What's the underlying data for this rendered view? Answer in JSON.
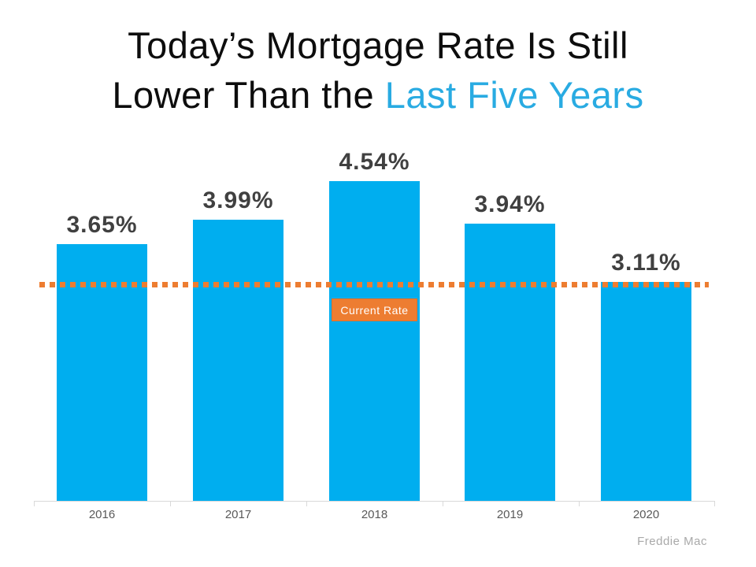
{
  "title": {
    "line1": "Today’s Mortgage Rate Is Still",
    "line2_prefix": "Lower Than the ",
    "line2_accent": "Last Five Years",
    "accent_color": "#29ABE2"
  },
  "chart_data": {
    "type": "bar",
    "categories": [
      "2016",
      "2017",
      "2018",
      "2019",
      "2020"
    ],
    "values": [
      3.65,
      3.99,
      4.54,
      3.94,
      3.11
    ],
    "value_labels": [
      "3.65%",
      "3.99%",
      "4.54%",
      "3.94%",
      "3.11%"
    ],
    "title": "Today’s Mortgage Rate Is Still Lower Than the Last Five Years",
    "xlabel": "",
    "ylabel": "",
    "ylim": [
      0,
      5.1
    ],
    "grid": false,
    "legend": "none",
    "bar_color": "#00AEEF",
    "reference_line": {
      "value": 3.11,
      "label": "Current Rate",
      "color": "#ED7D31",
      "style": "dotted"
    },
    "source": "Freddie Mac"
  },
  "colors": {
    "bar": "#00AEEF",
    "title_accent": "#29ABE2",
    "orange": "#ED7D31",
    "value_label": "#404040",
    "year_label": "#595959",
    "axis": "#D9D9D9",
    "source_text": "#A9A9A9"
  }
}
